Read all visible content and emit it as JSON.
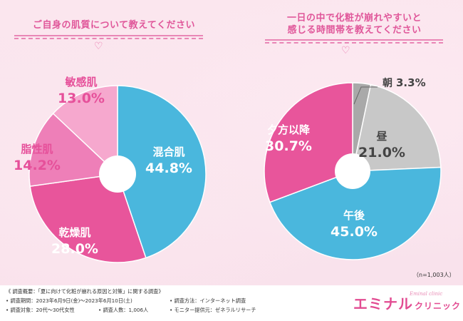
{
  "left_question": "ご自身の肌質について教えてください",
  "right_question_line1": "一日の中で化粧が崩れやすいと",
  "right_question_line2": "感じる時間帯を教えてください",
  "chart_data": [
    {
      "type": "pie",
      "title": "ご自身の肌質について教えてください",
      "style": "donut",
      "slices": [
        {
          "label": "混合肌",
          "value": 44.8,
          "value_label": "44.8%",
          "color": "#4ab7dd",
          "label_color": "#ffffff"
        },
        {
          "label": "乾燥肌",
          "value": 28.0,
          "value_label": "28.0%",
          "color": "#e8559b",
          "label_color": "#ffffff"
        },
        {
          "label": "脂性肌",
          "value": 14.2,
          "value_label": "14.2%",
          "color": "#ee7fb8",
          "label_color": "#e6509a"
        },
        {
          "label": "敏感肌",
          "value": 13.0,
          "value_label": "13.0%",
          "color": "#f6a8ce",
          "label_color": "#e6509a"
        }
      ]
    },
    {
      "type": "pie",
      "title": "一日の中で化粧が崩れやすいと感じる時間帯を教えてください",
      "style": "donut",
      "slices": [
        {
          "label": "朝",
          "value": 3.3,
          "value_label": "3.3%",
          "color": "#a9a9a9",
          "label_color": "#444444"
        },
        {
          "label": "昼",
          "value": 21.0,
          "value_label": "21.0%",
          "color": "#c8c8c8",
          "label_color": "#444444"
        },
        {
          "label": "午後",
          "value": 45.0,
          "value_label": "45.0%",
          "color": "#4ab7dd",
          "label_color": "#ffffff"
        },
        {
          "label": "夕方以降",
          "value": 30.7,
          "value_label": "30.7%",
          "color": "#e8559b",
          "label_color": "#ffffff"
        }
      ],
      "note": "（n=1,003人）"
    }
  ],
  "footer": {
    "summary": "《 調査概要：「夏に向けて化粧が崩れる原因と対策」に関する調査》",
    "period": "• 調査期間：2023年6月9日(金)〜2023年6月10日(土)",
    "target": "• 調査対象：20代〜30代女性",
    "count": "• 調査人数：1,006人",
    "method": "• 調査方法：インターネット調査",
    "monitor": "• モニター提供元：ゼネラルリサーチ"
  },
  "brand": {
    "main": "エミナル",
    "small": "クリニック",
    "sub": "Eminal clinic"
  },
  "icons": {
    "heart": "heart-icon"
  }
}
